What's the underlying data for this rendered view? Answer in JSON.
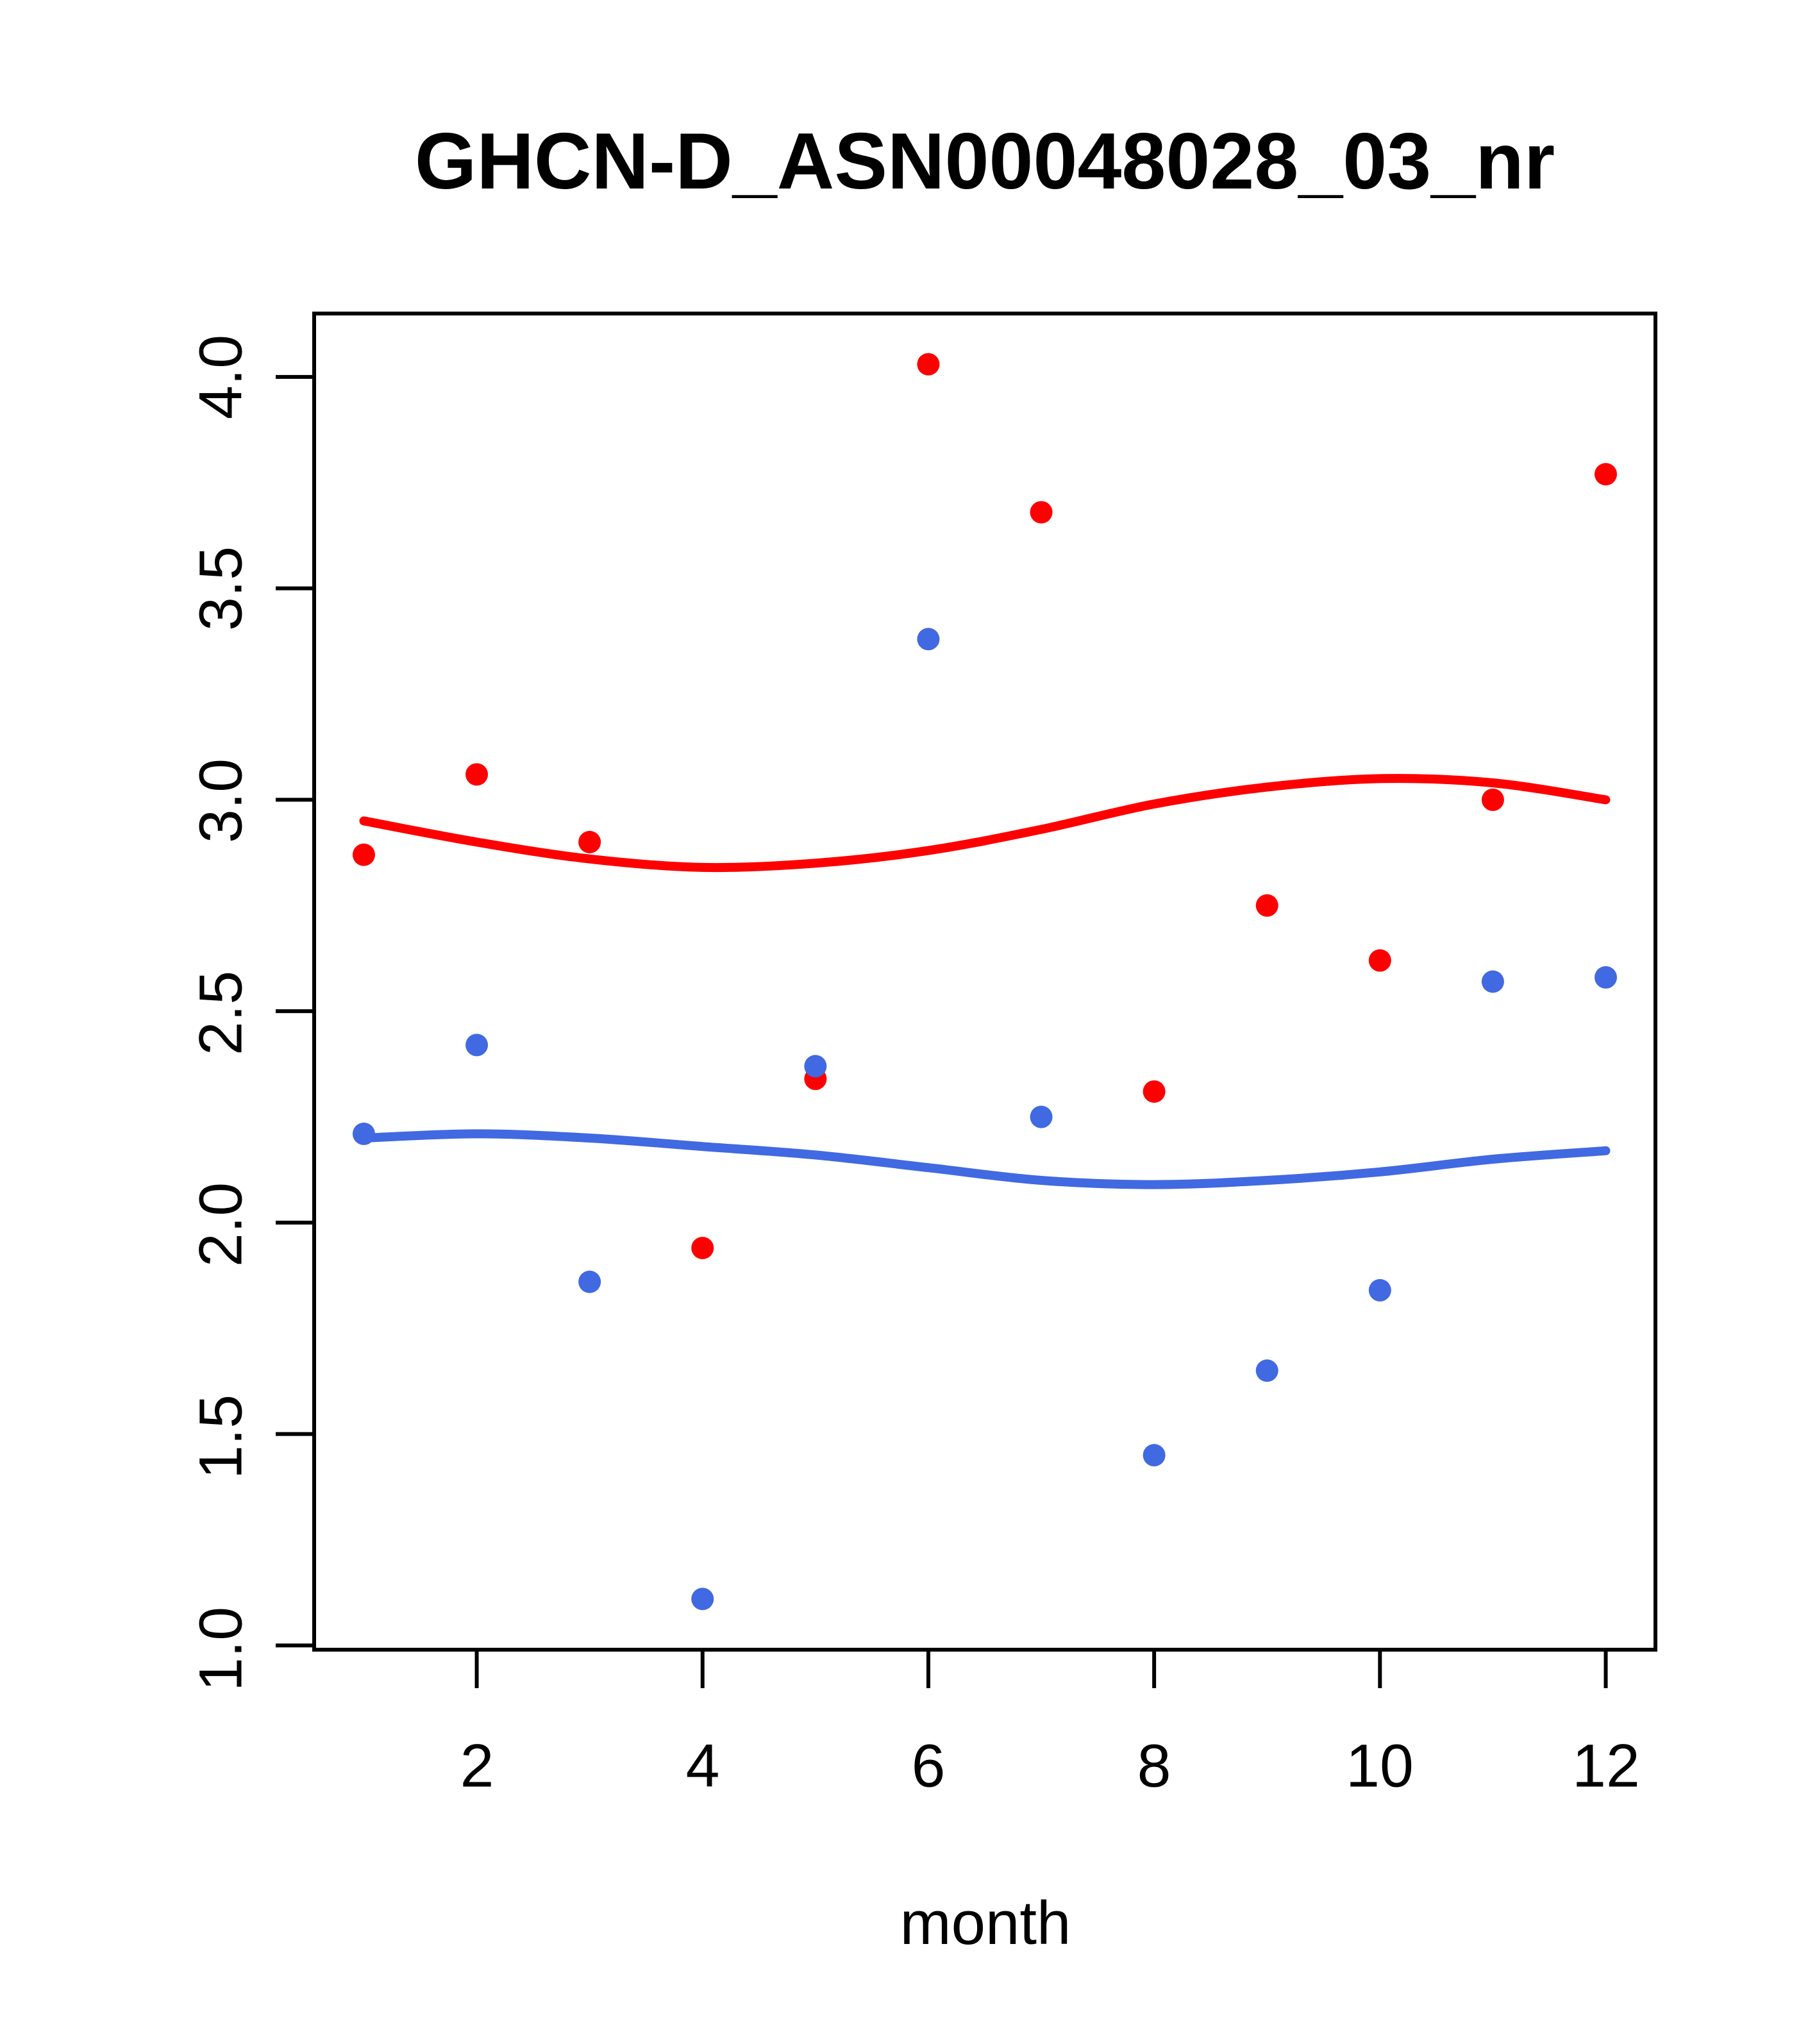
{
  "title": "GHCN-D_ASN00048028_03_nr",
  "xlabel": "month",
  "colors": {
    "red_series": "#FF0000",
    "blue_series": "#4169E1",
    "axis": "#000000",
    "background": "#FFFFFF"
  },
  "chart_data": {
    "type": "scatter",
    "title": "GHCN-D_ASN00048028_03_nr",
    "xlabel": "month",
    "ylabel": "",
    "grid": false,
    "legend": false,
    "xlim": [
      0.56,
      12.44
    ],
    "ylim": [
      0.99,
      4.15
    ],
    "x_ticks": [
      2,
      4,
      6,
      8,
      10,
      12
    ],
    "x_tick_labels": [
      "2",
      "4",
      "6",
      "8",
      "10",
      "12"
    ],
    "y_ticks": [
      1.0,
      1.5,
      2.0,
      2.5,
      3.0,
      3.5,
      4.0
    ],
    "y_tick_labels": [
      "1.0",
      "1.5",
      "2.0",
      "2.5",
      "3.0",
      "3.5",
      "4.0"
    ],
    "x": [
      1,
      2,
      3,
      4,
      5,
      6,
      7,
      8,
      9,
      10,
      11,
      12
    ],
    "series": [
      {
        "name": "red-points",
        "kind": "points",
        "color": "#FF0000",
        "values": [
          2.87,
          3.06,
          2.9,
          1.94,
          2.34,
          4.03,
          3.68,
          2.31,
          2.75,
          2.62,
          3.0,
          3.77
        ]
      },
      {
        "name": "blue-points",
        "kind": "points",
        "color": "#4169E1",
        "values": [
          2.21,
          2.42,
          1.86,
          1.11,
          2.37,
          3.38,
          2.25,
          1.45,
          1.65,
          1.84,
          2.57,
          2.58
        ]
      },
      {
        "name": "red-smooth-line",
        "kind": "line",
        "color": "#FF0000",
        "values": [
          2.95,
          2.9,
          2.86,
          2.84,
          2.85,
          2.88,
          2.93,
          2.99,
          3.03,
          3.05,
          3.04,
          3.0
        ]
      },
      {
        "name": "blue-smooth-line",
        "kind": "line",
        "color": "#4169E1",
        "values": [
          2.2,
          2.21,
          2.2,
          2.18,
          2.16,
          2.13,
          2.1,
          2.09,
          2.1,
          2.12,
          2.15,
          2.17
        ]
      }
    ]
  }
}
